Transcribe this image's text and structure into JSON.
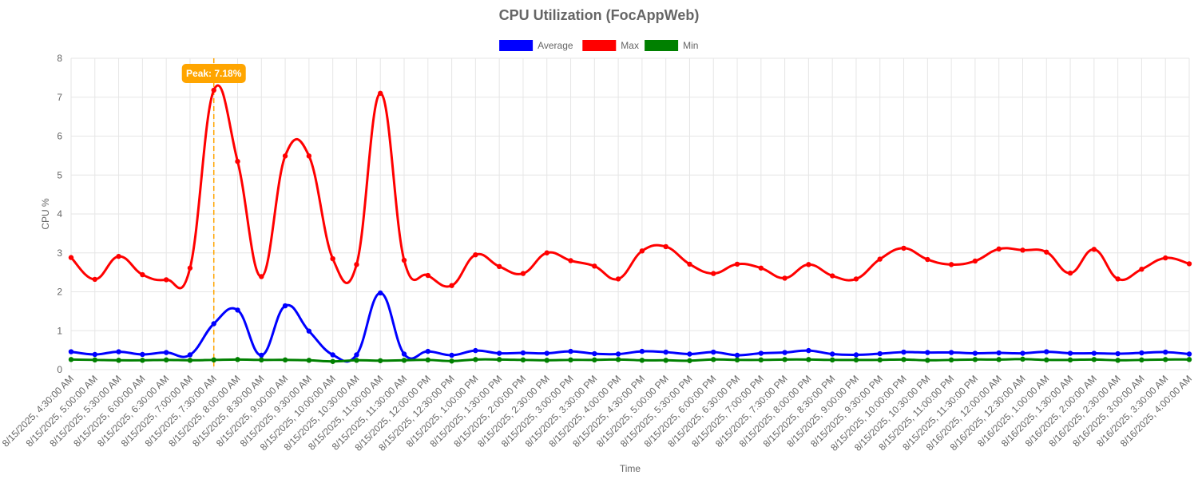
{
  "chart_data": {
    "type": "line",
    "title": "CPU Utilization (FocAppWeb)",
    "xlabel": "Time",
    "ylabel": "CPU %",
    "ylim": [
      0,
      8
    ],
    "yticks": [
      "0",
      "1",
      "2",
      "3",
      "4",
      "5",
      "6",
      "7",
      "8"
    ],
    "grid": true,
    "legend_position": "top",
    "categories": [
      "8/15/2025, 4:30:00 AM",
      "8/15/2025, 5:00:00 AM",
      "8/15/2025, 5:30:00 AM",
      "8/15/2025, 6:00:00 AM",
      "8/15/2025, 6:30:00 AM",
      "8/15/2025, 7:00:00 AM",
      "8/15/2025, 7:30:00 AM",
      "8/15/2025, 8:00:00 AM",
      "8/15/2025, 8:30:00 AM",
      "8/15/2025, 9:00:00 AM",
      "8/15/2025, 9:30:00 AM",
      "8/15/2025, 10:00:00 AM",
      "8/15/2025, 10:30:00 AM",
      "8/15/2025, 11:00:00 AM",
      "8/15/2025, 11:30:00 AM",
      "8/15/2025, 12:00:00 PM",
      "8/15/2025, 12:30:00 PM",
      "8/15/2025, 1:00:00 PM",
      "8/15/2025, 1:30:00 PM",
      "8/15/2025, 2:00:00 PM",
      "8/15/2025, 2:30:00 PM",
      "8/15/2025, 3:00:00 PM",
      "8/15/2025, 3:30:00 PM",
      "8/15/2025, 4:00:00 PM",
      "8/15/2025, 4:30:00 PM",
      "8/15/2025, 5:00:00 PM",
      "8/15/2025, 5:30:00 PM",
      "8/15/2025, 6:00:00 PM",
      "8/15/2025, 6:30:00 PM",
      "8/15/2025, 7:00:00 PM",
      "8/15/2025, 7:30:00 PM",
      "8/15/2025, 8:00:00 PM",
      "8/15/2025, 8:30:00 PM",
      "8/15/2025, 9:00:00 PM",
      "8/15/2025, 9:30:00 PM",
      "8/15/2025, 10:00:00 PM",
      "8/15/2025, 10:30:00 PM",
      "8/15/2025, 11:00:00 PM",
      "8/15/2025, 11:30:00 PM",
      "8/16/2025, 12:00:00 AM",
      "8/16/2025, 12:30:00 AM",
      "8/16/2025, 1:00:00 AM",
      "8/16/2025, 1:30:00 AM",
      "8/16/2025, 2:00:00 AM",
      "8/16/2025, 2:30:00 AM",
      "8/16/2025, 3:00:00 AM",
      "8/16/2025, 3:30:00 AM",
      "8/16/2025, 4:00:00 AM"
    ],
    "series": [
      {
        "name": "Average",
        "color": "#0000ff",
        "values": [
          0.46,
          0.39,
          0.46,
          0.39,
          0.44,
          0.38,
          1.18,
          1.53,
          0.37,
          1.64,
          0.99,
          0.38,
          0.38,
          1.97,
          0.4,
          0.47,
          0.37,
          0.49,
          0.42,
          0.43,
          0.42,
          0.47,
          0.41,
          0.4,
          0.47,
          0.45,
          0.4,
          0.45,
          0.37,
          0.42,
          0.44,
          0.49,
          0.4,
          0.38,
          0.41,
          0.45,
          0.44,
          0.44,
          0.42,
          0.43,
          0.42,
          0.46,
          0.42,
          0.42,
          0.41,
          0.43,
          0.45,
          0.4
        ]
      },
      {
        "name": "Max",
        "color": "#ff0000",
        "values": [
          2.88,
          2.32,
          2.91,
          2.44,
          2.31,
          2.61,
          7.18,
          5.35,
          2.39,
          5.49,
          5.49,
          2.85,
          2.7,
          7.1,
          2.81,
          2.42,
          2.16,
          2.95,
          2.65,
          2.47,
          3.0,
          2.8,
          2.66,
          2.33,
          3.05,
          3.16,
          2.71,
          2.47,
          2.71,
          2.61,
          2.35,
          2.7,
          2.41,
          2.33,
          2.84,
          3.12,
          2.83,
          2.7,
          2.79,
          3.1,
          3.07,
          3.02,
          2.48,
          3.09,
          2.33,
          2.58,
          2.87,
          2.72
        ]
      },
      {
        "name": "Min",
        "color": "#008000",
        "values": [
          0.26,
          0.25,
          0.24,
          0.24,
          0.25,
          0.24,
          0.25,
          0.26,
          0.25,
          0.25,
          0.24,
          0.21,
          0.24,
          0.23,
          0.24,
          0.25,
          0.22,
          0.26,
          0.26,
          0.25,
          0.24,
          0.25,
          0.25,
          0.26,
          0.24,
          0.24,
          0.23,
          0.26,
          0.25,
          0.25,
          0.26,
          0.26,
          0.25,
          0.25,
          0.25,
          0.26,
          0.24,
          0.25,
          0.26,
          0.26,
          0.27,
          0.25,
          0.25,
          0.26,
          0.24,
          0.25,
          0.26,
          0.26
        ]
      }
    ],
    "annotations": [
      {
        "type": "vertical-line",
        "x": "8/15/2025, 7:30:00 AM",
        "label": "Peak: 7.18%",
        "color": "#ffa500",
        "style": "dashed"
      }
    ]
  }
}
